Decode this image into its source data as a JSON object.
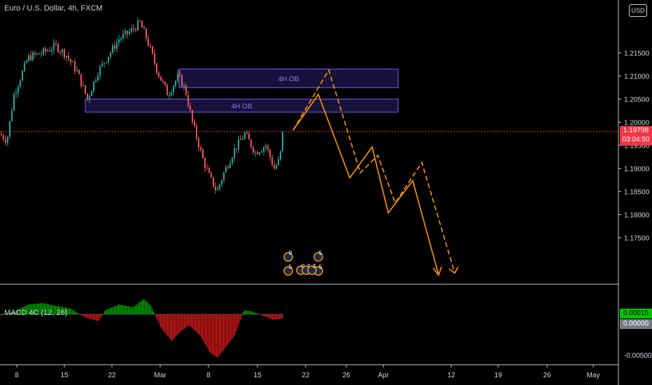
{
  "header": {
    "symbol_title": "Euro / U.S. Dollar, 4h, FXCM",
    "currency": "USD"
  },
  "price_badge": {
    "price": "1.19798",
    "countdown": "03:04:50",
    "color": "#f23645"
  },
  "macd_panel": {
    "title": "MACD 4C (12, 26)",
    "value_badge": "0.00015",
    "zero_badge": "0.00000",
    "y_ticks": [
      "-0.00500"
    ],
    "positive_color": "#00c400",
    "negative_color": "#ff1e1e"
  },
  "chart_data": {
    "type": "candlestick",
    "y_ticks": [
      "1.21500",
      "1.21000",
      "1.20500",
      "1.20000",
      "1.19500",
      "1.19000",
      "1.18500",
      "1.18000",
      "1.17500"
    ],
    "x_ticks": [
      "8",
      "15",
      "22",
      "Mar",
      "8",
      "15",
      "22",
      "26",
      "Apr",
      "12",
      "19",
      "26",
      "May"
    ],
    "price_range": [
      1.172,
      1.222
    ],
    "current_price": 1.19798,
    "order_blocks": [
      {
        "label": "4H OB",
        "top": 1.2115,
        "bottom": 1.2075,
        "start_x": "Mar",
        "end_x": "Apr"
      },
      {
        "label": "4H OB",
        "top": 1.205,
        "bottom": 1.2022,
        "start_x": "15",
        "end_x": "Apr"
      }
    ],
    "colors": {
      "up": "#26a69a",
      "down": "#ef5350",
      "projection": "#ff9800",
      "order_block": "#3d2b8f"
    },
    "event_counts": [
      "9",
      "5",
      "5",
      "5",
      "0",
      "7",
      "3"
    ]
  }
}
